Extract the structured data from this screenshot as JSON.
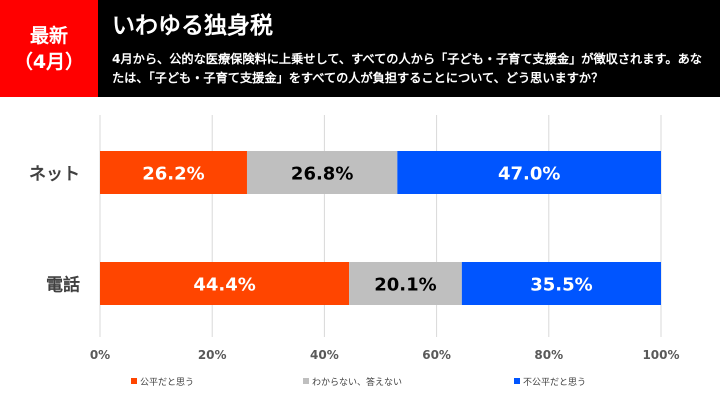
{
  "badge": {
    "line1": "最新",
    "line2": "（4月）"
  },
  "headline": "いわゆる独身税",
  "question": "4月から、公的な医療保険料に上乗せして、すべての人から「子ども・子育て支援金」が徴収されます。あなたは、「子ども・子育て支援金」をすべての人が負担することについて、どう思いますか？",
  "chart_data": {
    "type": "bar",
    "orientation": "horizontal",
    "stacked": true,
    "percent": true,
    "categories": [
      "ネット",
      "電話"
    ],
    "series": [
      {
        "name": "公平だと思う",
        "values": [
          26.2,
          44.4
        ],
        "color": "#ff4500",
        "label_color": "#ffffff"
      },
      {
        "name": "わからない、答えない",
        "values": [
          26.8,
          20.1
        ],
        "color": "#bfbfbf",
        "label_color": "#000000"
      },
      {
        "name": "不公平だと思う",
        "values": [
          47.0,
          35.5
        ],
        "color": "#0055ff",
        "label_color": "#ffffff"
      }
    ],
    "xlim": [
      0,
      100
    ],
    "xticks": [
      "0%",
      "20%",
      "40%",
      "60%",
      "80%",
      "100%"
    ],
    "value_suffix": "%",
    "grid": true,
    "legend": "bottom"
  }
}
